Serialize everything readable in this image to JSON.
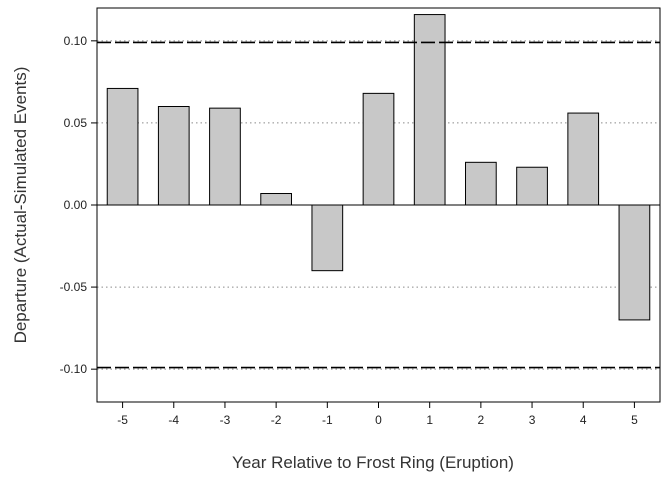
{
  "chart_data": {
    "type": "bar",
    "title": "",
    "xlabel": "Year Relative to Frost Ring (Eruption)",
    "ylabel": "Departure (Actual-Simulated Events)",
    "categories": [
      "-5",
      "-4",
      "-3",
      "-2",
      "-1",
      "0",
      "1",
      "2",
      "3",
      "4",
      "5"
    ],
    "values": [
      0.071,
      0.06,
      0.059,
      0.007,
      -0.04,
      0.068,
      0.116,
      0.026,
      0.023,
      0.056,
      -0.07
    ],
    "ylim": [
      -0.12,
      0.12
    ],
    "yticks": [
      0.1,
      0.05,
      0.0,
      -0.05,
      -0.1
    ],
    "ytick_labels": [
      "0.10",
      "0.05",
      "0.00",
      "-0.05",
      "-0.10"
    ],
    "grid_lines_dotted": [
      0.1,
      0.05,
      -0.05,
      -0.1
    ],
    "confidence_lines_dashed": [
      0.099,
      -0.099
    ],
    "zero_line": 0.0,
    "bar_fill": "#c8c8c8",
    "bar_stroke": "#000000",
    "grid_color": "#8a8a8a",
    "legend": "none"
  }
}
